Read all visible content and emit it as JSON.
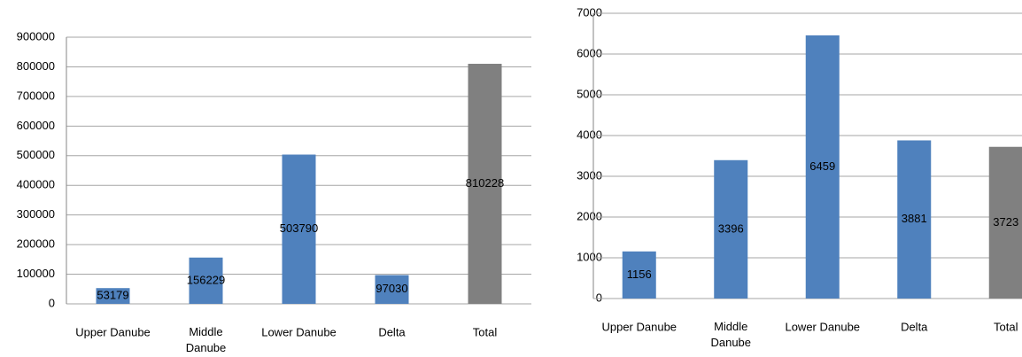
{
  "chart_data": [
    {
      "type": "bar",
      "categories": [
        "Upper Danube",
        "Middle Danube",
        "Lower Danube",
        "Delta",
        "Total"
      ],
      "values": [
        53179,
        156229,
        503790,
        97030,
        810228
      ],
      "colors": [
        "#4f81bd",
        "#4f81bd",
        "#4f81bd",
        "#4f81bd",
        "#808080"
      ],
      "ylim": [
        0,
        900000
      ],
      "yticks": [
        0,
        100000,
        200000,
        300000,
        400000,
        500000,
        600000,
        700000,
        800000,
        900000
      ],
      "grid": true
    },
    {
      "type": "bar",
      "categories": [
        "Upper Danube",
        "Middle Danube",
        "Lower Danube",
        "Delta",
        "Total"
      ],
      "values": [
        1156,
        3396,
        6459,
        3881,
        3723
      ],
      "colors": [
        "#4f81bd",
        "#4f81bd",
        "#4f81bd",
        "#4f81bd",
        "#808080"
      ],
      "ylim": [
        0,
        7000
      ],
      "yticks": [
        0,
        1000,
        2000,
        3000,
        4000,
        5000,
        6000,
        7000
      ],
      "grid": true
    }
  ]
}
